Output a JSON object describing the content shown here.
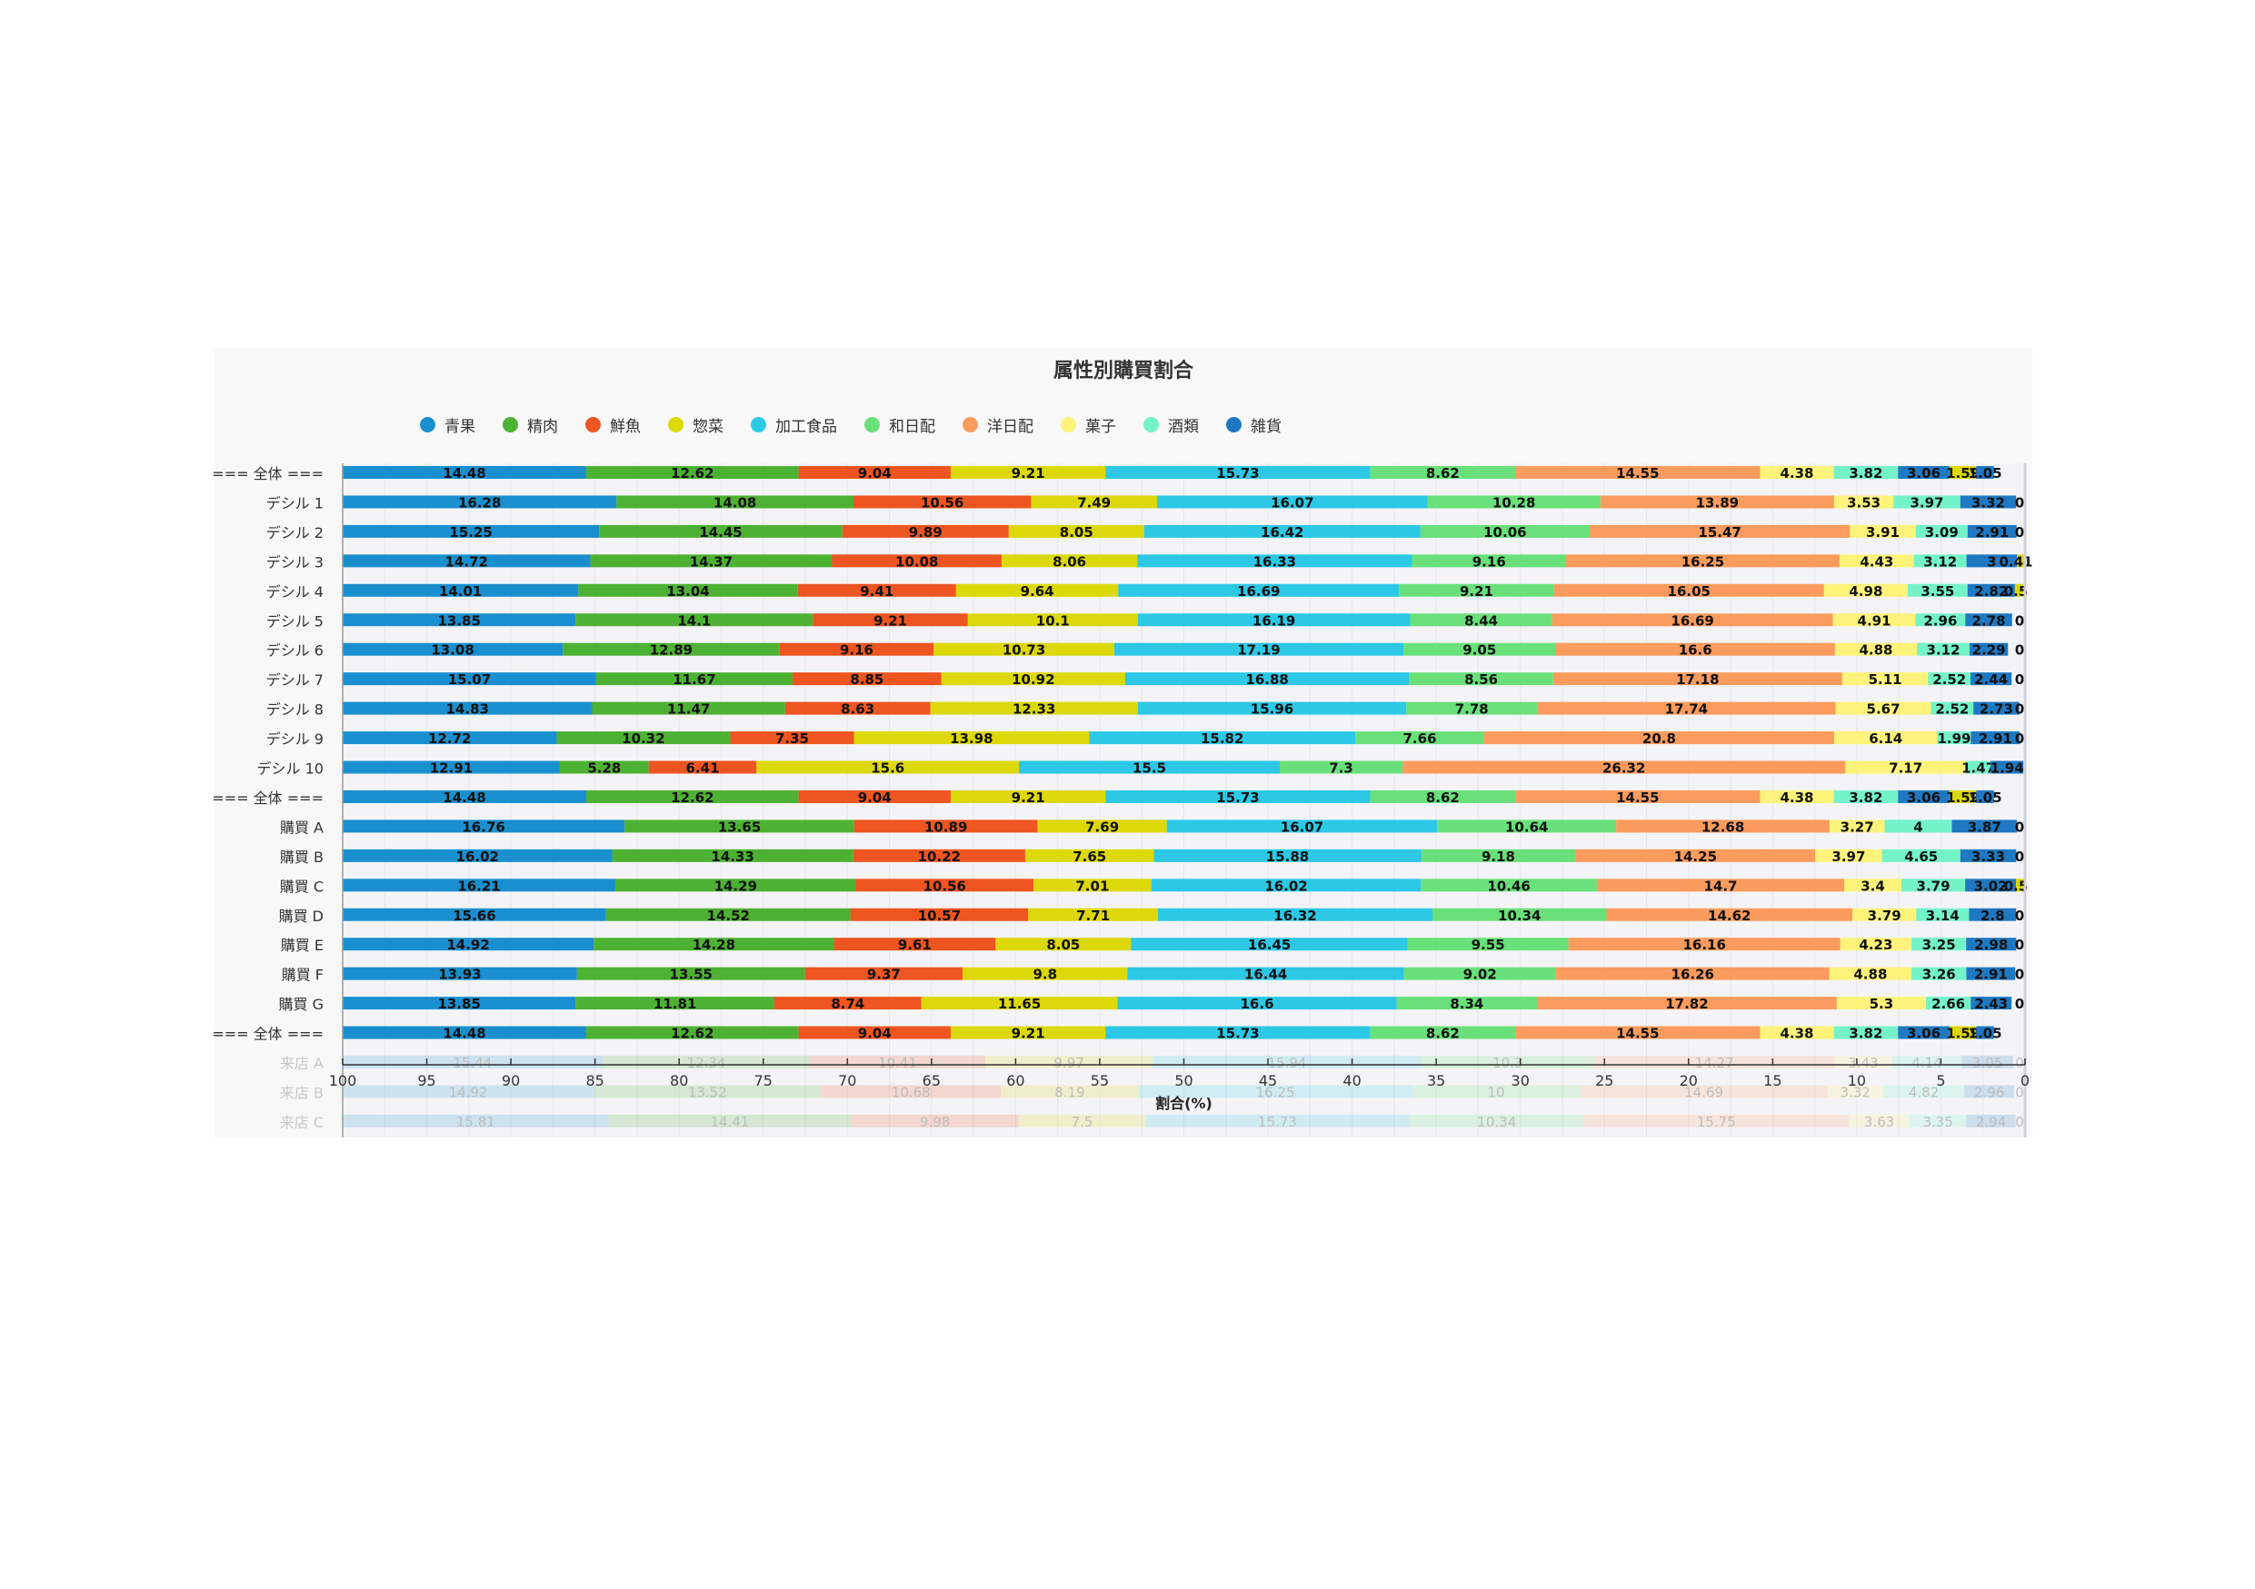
{
  "chart_data": {
    "type": "bar",
    "orientation": "horizontal-stacked",
    "title": "属性別購買割合",
    "xlabel": "割合(%)",
    "xlim": [
      100,
      0
    ],
    "x_ticks": [
      "100",
      "95",
      "90",
      "85",
      "80",
      "75",
      "70",
      "65",
      "60",
      "55",
      "50",
      "45",
      "40",
      "35",
      "30",
      "25",
      "20",
      "15",
      "10",
      "5",
      "0"
    ],
    "legend_position": "top",
    "series": [
      {
        "name": "青果",
        "color": "#1a8fcf"
      },
      {
        "name": "精肉",
        "color": "#4db233"
      },
      {
        "name": "鮮魚",
        "color": "#ee5520"
      },
      {
        "name": "惣菜",
        "color": "#dcd80a"
      },
      {
        "name": "加工食品",
        "color": "#2cc8e6"
      },
      {
        "name": "和日配",
        "color": "#69e07a"
      },
      {
        "name": "洋日配",
        "color": "#fb9b5d"
      },
      {
        "name": "菓子",
        "color": "#fdf37a"
      },
      {
        "name": "酒類",
        "color": "#74f3c9"
      },
      {
        "name": "雑貨",
        "color": "#1e78c2"
      }
    ],
    "rows": [
      {
        "label": "=== 全体 ===",
        "values": [
          14.48,
          12.62,
          9.04,
          9.21,
          15.73,
          8.62,
          14.55,
          4.38,
          3.82,
          3.06,
          1.59,
          1.05
        ],
        "labels": [
          "14.48",
          "12.62",
          "9.04",
          "9.21",
          "15.73",
          "8.62",
          "14.55",
          "4.38",
          "3.82",
          "3.06",
          "1.59",
          "1.05"
        ]
      },
      {
        "label": "デシル 1",
        "values": [
          16.28,
          14.08,
          10.56,
          7.49,
          16.07,
          10.28,
          13.89,
          3.53,
          3.97,
          3.32,
          0
        ],
        "labels": [
          "16.28",
          "14.08",
          "10.56",
          "7.49",
          "16.07",
          "10.28",
          "13.89",
          "3.53",
          "3.97",
          "3.32",
          "0"
        ]
      },
      {
        "label": "デシル 2",
        "values": [
          15.25,
          14.45,
          9.89,
          8.05,
          16.42,
          10.06,
          15.47,
          3.91,
          3.09,
          2.91,
          0
        ],
        "labels": [
          "15.25",
          "14.45",
          "9.89",
          "8.05",
          "16.42",
          "10.06",
          "15.47",
          "3.91",
          "3.09",
          "2.91",
          "0"
        ]
      },
      {
        "label": "デシル 3",
        "values": [
          14.72,
          14.37,
          10.08,
          8.06,
          16.33,
          9.16,
          16.25,
          4.43,
          3.12,
          3,
          0.41
        ],
        "labels": [
          "14.72",
          "14.37",
          "10.08",
          "8.06",
          "16.33",
          "9.16",
          "16.25",
          "4.43",
          "3.12",
          "3",
          "0.41"
        ]
      },
      {
        "label": "デシル 4",
        "values": [
          14.01,
          13.04,
          9.41,
          9.64,
          16.69,
          9.21,
          16.05,
          4.98,
          3.55,
          2.82,
          0.5
        ],
        "labels": [
          "14.01",
          "13.04",
          "9.41",
          "9.64",
          "16.69",
          "9.21",
          "16.05",
          "4.98",
          "3.55",
          "2.82",
          "0.5"
        ]
      },
      {
        "label": "デシル 5",
        "values": [
          13.85,
          14.1,
          9.21,
          10.1,
          16.19,
          8.44,
          16.69,
          4.91,
          2.96,
          2.78,
          0
        ],
        "labels": [
          "13.85",
          "14.1",
          "9.21",
          "10.1",
          "16.19",
          "8.44",
          "16.69",
          "4.91",
          "2.96",
          "2.78",
          "0"
        ]
      },
      {
        "label": "デシル 6",
        "values": [
          13.08,
          12.89,
          9.16,
          10.73,
          17.19,
          9.05,
          16.6,
          4.88,
          3.12,
          2.29,
          0
        ],
        "labels": [
          "13.08",
          "12.89",
          "9.16",
          "10.73",
          "17.19",
          "9.05",
          "16.6",
          "4.88",
          "3.12",
          "2.29",
          "0"
        ]
      },
      {
        "label": "デシル 7",
        "values": [
          15.07,
          11.67,
          8.85,
          10.92,
          16.88,
          8.56,
          17.18,
          5.11,
          2.52,
          2.44,
          0
        ],
        "labels": [
          "15.07",
          "11.67",
          "8.85",
          "10.92",
          "16.88",
          "8.56",
          "17.18",
          "5.11",
          "2.52",
          "2.44",
          "0"
        ]
      },
      {
        "label": "デシル 8",
        "values": [
          14.83,
          11.47,
          8.63,
          12.33,
          15.96,
          7.78,
          17.74,
          5.67,
          2.52,
          2.73,
          0
        ],
        "labels": [
          "14.83",
          "11.47",
          "8.63",
          "12.33",
          "15.96",
          "7.78",
          "17.74",
          "5.67",
          "2.52",
          "2.73",
          "0"
        ]
      },
      {
        "label": "デシル 9",
        "values": [
          12.72,
          10.32,
          7.35,
          13.98,
          15.82,
          7.66,
          20.8,
          6.14,
          1.99,
          2.91,
          0
        ],
        "labels": [
          "12.72",
          "10.32",
          "7.35",
          "13.98",
          "15.82",
          "7.66",
          "20.8",
          "6.14",
          "1.99",
          "2.91",
          "0"
        ]
      },
      {
        "label": "デシル 10",
        "values": [
          12.91,
          5.28,
          6.41,
          15.6,
          15.5,
          7.3,
          26.32,
          7.17,
          1.47,
          1.94
        ],
        "labels": [
          "12.91",
          "5.28",
          "6.41",
          "15.6",
          "15.5",
          "7.3",
          "26.32",
          "7.17",
          "1.47",
          "1.94"
        ]
      },
      {
        "label": "=== 全体 ===",
        "values": [
          14.48,
          12.62,
          9.04,
          9.21,
          15.73,
          8.62,
          14.55,
          4.38,
          3.82,
          3.06,
          1.59,
          1.05
        ],
        "labels": [
          "14.48",
          "12.62",
          "9.04",
          "9.21",
          "15.73",
          "8.62",
          "14.55",
          "4.38",
          "3.82",
          "3.06",
          "1.59",
          "1.05"
        ]
      },
      {
        "label": "購買 A",
        "values": [
          16.76,
          13.65,
          10.89,
          7.69,
          16.07,
          10.64,
          12.68,
          3.27,
          4,
          3.87,
          0
        ],
        "labels": [
          "16.76",
          "13.65",
          "10.89",
          "7.69",
          "16.07",
          "10.64",
          "12.68",
          "3.27",
          "4",
          "3.87",
          "0"
        ]
      },
      {
        "label": "購買 B",
        "values": [
          16.02,
          14.33,
          10.22,
          7.65,
          15.88,
          9.18,
          14.25,
          3.97,
          4.65,
          3.33,
          0
        ],
        "labels": [
          "16.02",
          "14.33",
          "10.22",
          "7.65",
          "15.88",
          "9.18",
          "14.25",
          "3.97",
          "4.65",
          "3.33",
          "0"
        ]
      },
      {
        "label": "購買 C",
        "values": [
          16.21,
          14.29,
          10.56,
          7.01,
          16.02,
          10.46,
          14.7,
          3.4,
          3.79,
          3.02,
          0.5
        ],
        "labels": [
          "16.21",
          "14.29",
          "10.56",
          "7.01",
          "16.02",
          "10.46",
          "14.7",
          "3.4",
          "3.79",
          "3.02",
          "0.5"
        ]
      },
      {
        "label": "購買 D",
        "values": [
          15.66,
          14.52,
          10.57,
          7.71,
          16.32,
          10.34,
          14.62,
          3.79,
          3.14,
          2.8,
          0
        ],
        "labels": [
          "15.66",
          "14.52",
          "10.57",
          "7.71",
          "16.32",
          "10.34",
          "14.62",
          "3.79",
          "3.14",
          "2.8",
          "0"
        ]
      },
      {
        "label": "購買 E",
        "values": [
          14.92,
          14.28,
          9.61,
          8.05,
          16.45,
          9.55,
          16.16,
          4.23,
          3.25,
          2.98,
          0
        ],
        "labels": [
          "14.92",
          "14.28",
          "9.61",
          "8.05",
          "16.45",
          "9.55",
          "16.16",
          "4.23",
          "3.25",
          "2.98",
          "0"
        ]
      },
      {
        "label": "購買 F",
        "values": [
          13.93,
          13.55,
          9.37,
          9.8,
          16.44,
          9.02,
          16.26,
          4.88,
          3.26,
          2.91,
          0
        ],
        "labels": [
          "13.93",
          "13.55",
          "9.37",
          "9.8",
          "16.44",
          "9.02",
          "16.26",
          "4.88",
          "3.26",
          "2.91",
          "0"
        ]
      },
      {
        "label": "購買 G",
        "values": [
          13.85,
          11.81,
          8.74,
          11.65,
          16.6,
          8.34,
          17.82,
          5.3,
          2.66,
          2.43,
          0
        ],
        "labels": [
          "13.85",
          "11.81",
          "8.74",
          "11.65",
          "16.6",
          "8.34",
          "17.82",
          "5.3",
          "2.66",
          "2.43",
          "0"
        ]
      },
      {
        "label": "=== 全体 ===",
        "values": [
          14.48,
          12.62,
          9.04,
          9.21,
          15.73,
          8.62,
          14.55,
          4.38,
          3.82,
          3.06,
          1.59,
          1.05
        ],
        "labels": [
          "14.48",
          "12.62",
          "9.04",
          "9.21",
          "15.73",
          "8.62",
          "14.55",
          "4.38",
          "3.82",
          "3.06",
          "1.59",
          "1.05"
        ]
      },
      {
        "label": "来店 A",
        "faded": true,
        "values": [
          15.44,
          12.34,
          10.41,
          9.97,
          15.94,
          10.3,
          14.27,
          3.43,
          4.14,
          3.05,
          0
        ],
        "labels": [
          "15.44",
          "12.34",
          "10.41",
          "9.97",
          "15.94",
          "10.3",
          "14.27",
          "3.43",
          "4.14",
          "3.05",
          "0"
        ]
      },
      {
        "label": "来店 B",
        "faded": true,
        "values": [
          14.92,
          13.52,
          10.68,
          8.19,
          16.25,
          10,
          14.69,
          3.32,
          4.82,
          2.96,
          0
        ],
        "labels": [
          "14.92",
          "13.52",
          "10.68",
          "8.19",
          "16.25",
          "10",
          "14.69",
          "3.32",
          "4.82",
          "2.96",
          "0"
        ]
      },
      {
        "label": "来店 C",
        "faded": true,
        "values": [
          15.81,
          14.41,
          9.98,
          7.5,
          15.73,
          10.34,
          15.75,
          3.63,
          3.35,
          2.94,
          0
        ],
        "labels": [
          "15.81",
          "14.41",
          "9.98",
          "7.5",
          "15.73",
          "10.34",
          "15.75",
          "3.63",
          "3.35",
          "2.94",
          "0"
        ]
      }
    ]
  }
}
